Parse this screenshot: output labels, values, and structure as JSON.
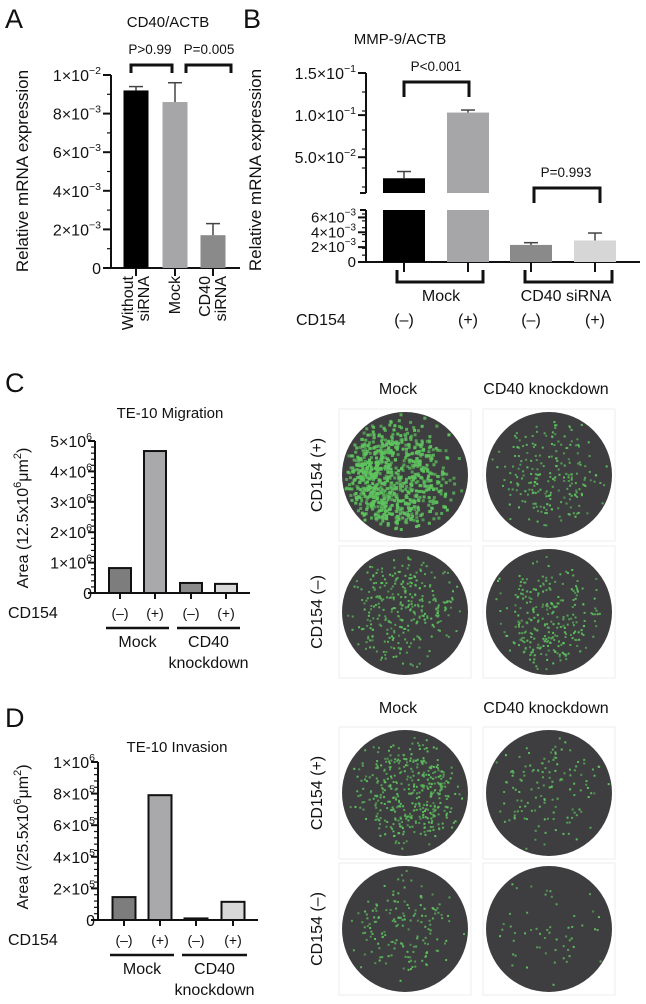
{
  "figure": {
    "panels": [
      "A",
      "B",
      "C",
      "D"
    ]
  },
  "chart_data": [
    {
      "panel": "A",
      "type": "bar",
      "title": "CD40/ACTB",
      "ylabel": "Relative mRNA expression",
      "xlabel": "",
      "categories": [
        "Without siRNA",
        "Mock",
        "CD40 siRNA"
      ],
      "values": [
        0.0092,
        0.0086,
        0.0017
      ],
      "error_upper": [
        0.0094,
        0.0096,
        0.0023
      ],
      "colors": [
        "#000000",
        "#a6a6a8",
        "#8a8a8a"
      ],
      "ylim": [
        0,
        0.01
      ],
      "yticks": [
        {
          "v": 0,
          "base": "0",
          "exp": ""
        },
        {
          "v": 0.002,
          "base": "2×10",
          "exp": "−3"
        },
        {
          "v": 0.004,
          "base": "4×10",
          "exp": "−3"
        },
        {
          "v": 0.006,
          "base": "6×10",
          "exp": "−3"
        },
        {
          "v": 0.008,
          "base": "8×10",
          "exp": "−3"
        },
        {
          "v": 0.01,
          "base": "1×10",
          "exp": "−2"
        }
      ],
      "annotations": [
        {
          "label": "P>0.99",
          "from": 0,
          "to": 1
        },
        {
          "label": "P=0.005",
          "from": 1,
          "to": 2
        }
      ],
      "xlabels": [
        [
          "Without",
          "siRNA"
        ],
        [
          "Mock"
        ],
        [
          "CD40",
          "siRNA"
        ]
      ],
      "grid": false
    },
    {
      "panel": "B",
      "type": "bar",
      "title": "MMP-9/ACTB",
      "ylabel": "Relative mRNA expression",
      "axis_break": true,
      "categories": [
        "Mock CD154 (−)",
        "Mock CD154 (+)",
        "CD40 siRNA CD154 (−)",
        "CD40 siRNA CD154 (+)"
      ],
      "values": [
        0.025,
        0.103,
        0.0023,
        0.0029
      ],
      "error_upper": [
        0.033,
        0.106,
        0.0026,
        0.0039
      ],
      "colors": [
        "#000000",
        "#a6a6a8",
        "#8a8a8a",
        "#d6d6d6"
      ],
      "ylim_lower": [
        0,
        0.007
      ],
      "ylim_upper": [
        0.0075,
        0.15
      ],
      "yticks_lower": [
        {
          "v": 0,
          "base": "0",
          "exp": ""
        },
        {
          "v": 0.002,
          "base": "2×10",
          "exp": "−3"
        },
        {
          "v": 0.004,
          "base": "4×10",
          "exp": "−3"
        },
        {
          "v": 0.006,
          "base": "6×10",
          "exp": "−3"
        }
      ],
      "yticks_upper": [
        {
          "v": 0.05,
          "base": "5.0×10",
          "exp": "−2"
        },
        {
          "v": 0.1,
          "base": "1.0×10",
          "exp": "−1"
        },
        {
          "v": 0.15,
          "base": "1.5×10",
          "exp": "−1"
        }
      ],
      "annotations": [
        {
          "label": "P<0.001",
          "from": 0,
          "to": 1
        },
        {
          "label": "P=0.993",
          "from": 2,
          "to": 3
        }
      ],
      "groups": [
        "Mock",
        "CD40 siRNA"
      ],
      "row_label": "CD154",
      "treatment": [
        "(–)",
        "(+)",
        "(–)",
        "(+)"
      ],
      "grid": false
    },
    {
      "panel": "C",
      "type": "bar",
      "title": "TE-10 Migration",
      "ylabel": "Area (12.5x10⁶ μm²)",
      "ylabel_parts": {
        "pre": "Area (12.5x10",
        "sup1": "6",
        "mid": "μm",
        "sup2": "2",
        "post": ")"
      },
      "categories": [
        "Mock (–)",
        "Mock (+)",
        "CD40 knockdown (–)",
        "CD40 knockdown (+)"
      ],
      "values": [
        820000,
        4670000,
        330000,
        300000
      ],
      "colors": [
        "#7d7d7d",
        "#a9a9ab",
        "#8a8a8a",
        "#d8d8d8"
      ],
      "ylim": [
        0,
        5000000
      ],
      "yticks": [
        {
          "v": 0,
          "base": "0",
          "exp": ""
        },
        {
          "v": 1000000,
          "base": "1×10",
          "exp": "6"
        },
        {
          "v": 2000000,
          "base": "2×10",
          "exp": "6"
        },
        {
          "v": 3000000,
          "base": "3×10",
          "exp": "6"
        },
        {
          "v": 4000000,
          "base": "4×10",
          "exp": "6"
        },
        {
          "v": 5000000,
          "base": "5×10",
          "exp": "6"
        }
      ],
      "row_label": "CD154",
      "treatment": [
        "(–)",
        "(+)",
        "(–)",
        "(+)"
      ],
      "groups": [
        [
          "Mock"
        ],
        [
          "CD40",
          "knockdown"
        ]
      ],
      "grid": false
    },
    {
      "panel": "D",
      "type": "bar",
      "title": "TE-10 Invasion",
      "ylabel": "Area (/25.5x10⁶ μm²)",
      "ylabel_parts": {
        "pre": "Area (/25.5x10",
        "sup1": "6",
        "mid": "μm",
        "sup2": "2",
        "post": ")"
      },
      "categories": [
        "Mock (–)",
        "Mock (+)",
        "CD40 knockdown (–)",
        "CD40 knockdown (+)"
      ],
      "values": [
        145000,
        790000,
        10000,
        115000
      ],
      "colors": [
        "#7d7d7d",
        "#a9a9ab",
        "#8a8a8a",
        "#d8d8d8"
      ],
      "ylim": [
        0,
        1000000
      ],
      "yticks": [
        {
          "v": 0,
          "base": "0",
          "exp": ""
        },
        {
          "v": 200000,
          "base": "2×10",
          "exp": "5"
        },
        {
          "v": 400000,
          "base": "4×10",
          "exp": "5"
        },
        {
          "v": 600000,
          "base": "6×10",
          "exp": "5"
        },
        {
          "v": 800000,
          "base": "8×10",
          "exp": "5"
        },
        {
          "v": 1000000,
          "base": "1×10",
          "exp": "6"
        }
      ],
      "row_label": "CD154",
      "treatment": [
        "(–)",
        "(+)",
        "(–)",
        "(+)"
      ],
      "groups": [
        [
          "Mock"
        ],
        [
          "CD40",
          "knockdown"
        ]
      ],
      "grid": false
    }
  ],
  "images": {
    "C": {
      "columns": [
        "Mock",
        "CD40 knockdown"
      ],
      "rows": [
        "CD154 (+)",
        "CD154 (–)"
      ],
      "density": [
        [
          0.95,
          0.25
        ],
        [
          0.35,
          0.3
        ]
      ]
    },
    "D": {
      "columns": [
        "Mock",
        "CD40 knockdown"
      ],
      "rows": [
        "CD154 (+)",
        "CD154 (–)"
      ],
      "density": [
        [
          0.45,
          0.15
        ],
        [
          0.18,
          0.06
        ]
      ]
    },
    "colors": {
      "well": "#3e3e40",
      "cell": "#5ec45e",
      "frame": "#eeeeee"
    }
  }
}
